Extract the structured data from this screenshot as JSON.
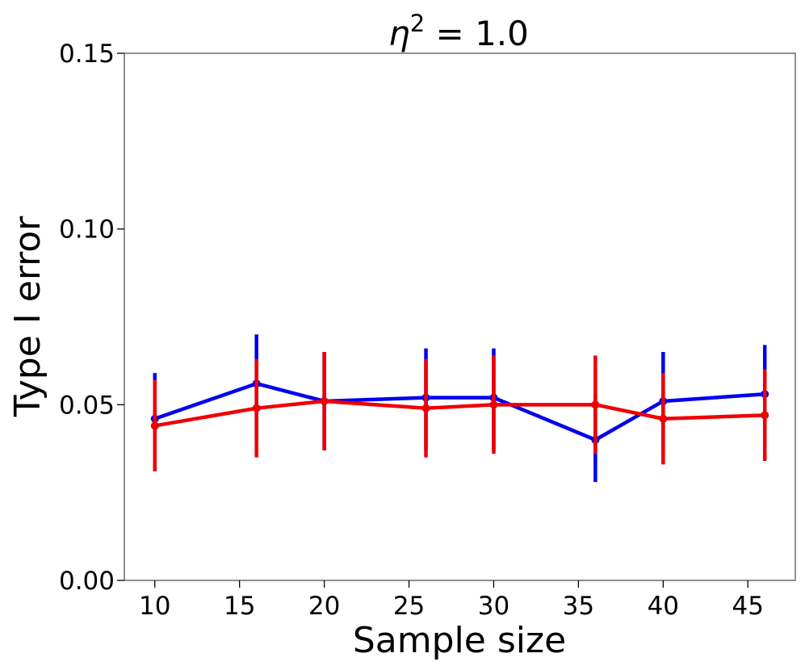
{
  "chart_data": {
    "type": "line",
    "title": {
      "base": "η",
      "superscript": "2",
      "suffix": " = 1.0"
    },
    "xlabel": "Sample size",
    "ylabel": "Type I error",
    "xlim": [
      8.2,
      47.8
    ],
    "ylim": [
      0.0,
      0.15
    ],
    "xticks": [
      10,
      15,
      20,
      25,
      30,
      35,
      40,
      45
    ],
    "xtick_labels": [
      "10",
      "15",
      "20",
      "25",
      "30",
      "35",
      "40",
      "45"
    ],
    "yticks": [
      0.0,
      0.05,
      0.1,
      0.15
    ],
    "ytick_labels": [
      "0.00",
      "0.05",
      "0.10",
      "0.15"
    ],
    "grid": false,
    "legend": null,
    "series": [
      {
        "name": "blue",
        "color": "#0000ee",
        "x": [
          10,
          16,
          20,
          26,
          30,
          36,
          40,
          46
        ],
        "y": [
          0.046,
          0.056,
          0.051,
          0.052,
          0.052,
          0.04,
          0.051,
          0.053
        ],
        "err_low": [
          0.032,
          0.04,
          0.037,
          0.037,
          0.037,
          0.028,
          0.036,
          0.038
        ],
        "err_high": [
          0.059,
          0.07,
          0.065,
          0.066,
          0.066,
          0.053,
          0.065,
          0.067
        ]
      },
      {
        "name": "red",
        "color": "#ee0000",
        "x": [
          10,
          16,
          20,
          26,
          30,
          36,
          40,
          46
        ],
        "y": [
          0.044,
          0.049,
          0.051,
          0.049,
          0.05,
          0.05,
          0.046,
          0.047
        ],
        "err_low": [
          0.031,
          0.035,
          0.037,
          0.035,
          0.036,
          0.036,
          0.033,
          0.034
        ],
        "err_high": [
          0.057,
          0.063,
          0.065,
          0.063,
          0.064,
          0.064,
          0.059,
          0.06
        ]
      }
    ]
  }
}
